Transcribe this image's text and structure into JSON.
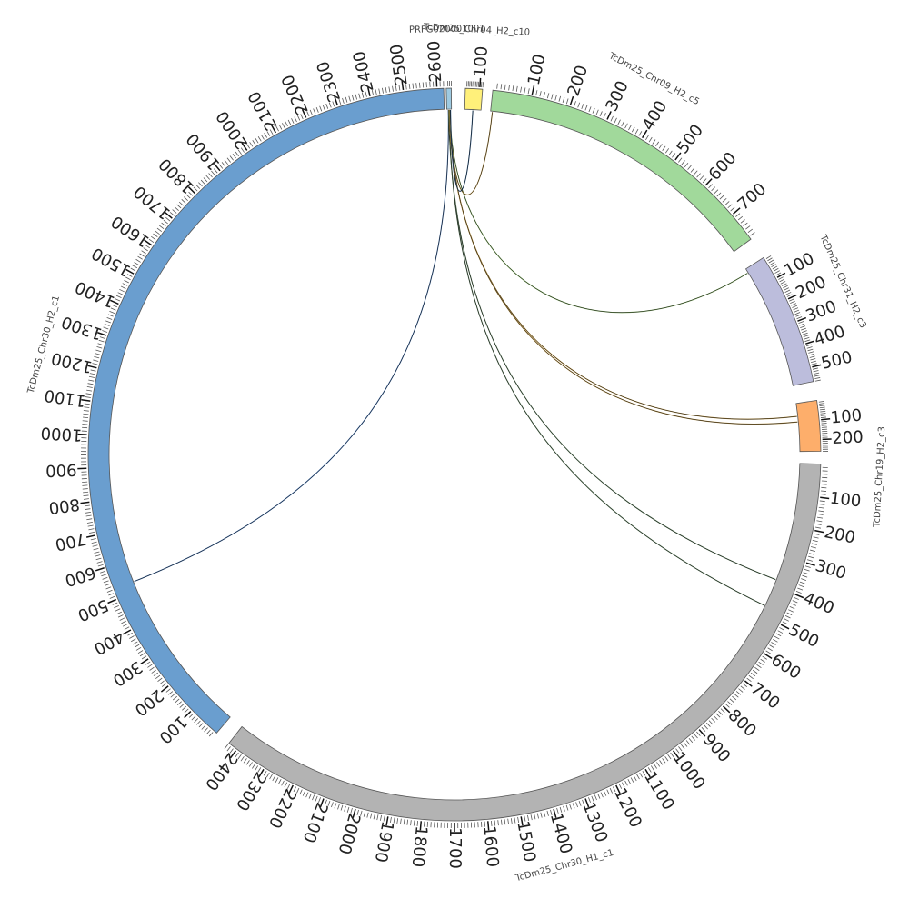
{
  "chart_data": {
    "type": "chord",
    "title": "",
    "tick_major_step": 100,
    "tick_minor_step": 10,
    "segments": [
      {
        "name": "TcDm25_Chr09_H2_c5",
        "length": 778,
        "color": "#a1d99b",
        "start_deg": 6.0,
        "end_deg": 54.0,
        "label_deg": 28
      },
      {
        "name": "TcDm25_Chr31_H2_c3",
        "length": 560,
        "color": "#bcbddc",
        "start_deg": 57.5,
        "end_deg": 78.5,
        "label_deg": 66
      },
      {
        "name": "TcDm25_Chr19_H2_c3",
        "length": 260,
        "color": "#fdae6b",
        "start_deg": 81.5,
        "end_deg": 89.5,
        "label_deg": 93
      },
      {
        "name": "TcDm25_Chr30_H1_c1",
        "length": 2430,
        "color": "#b3b3b3",
        "start_deg": 91.5,
        "end_deg": 218.0,
        "label_deg": 165
      },
      {
        "name": "TcDm25_Chr30_H2_c1",
        "length": 2620,
        "color": "#6a9ecf",
        "start_deg": 220.5,
        "end_deg": 358.3,
        "label_deg": 285
      },
      {
        "name": "PRFG020001001",
        "length": 30,
        "color": "#9ecae1",
        "start_deg": 358.7,
        "end_deg": 359.5,
        "label_deg": 359
      },
      {
        "name": "TcDm25_Chr04_H2_c10",
        "length": 120,
        "color": "#fff07a",
        "start_deg": 1.7,
        "end_deg": 4.4,
        "label_deg": 3
      }
    ],
    "links": [
      {
        "from": "PRFG020001001",
        "from_pos": 10,
        "to": "TcDm25_Chr30_H2_c1",
        "to_pos": 530,
        "color": "#3b6aa8"
      },
      {
        "from": "PRFG020001001",
        "from_pos": 12,
        "to": "TcDm25_Chr30_H1_c1",
        "to_pos": 380,
        "color": "#5a7a5a"
      },
      {
        "from": "PRFG020001001",
        "from_pos": 14,
        "to": "TcDm25_Chr30_H1_c1",
        "to_pos": 470,
        "color": "#5a7a5a"
      },
      {
        "from": "PRFG020001001",
        "from_pos": 16,
        "to": "TcDm25_Chr19_H2_c3",
        "to_pos": 70,
        "color": "#b08a3a"
      },
      {
        "from": "PRFG020001001",
        "from_pos": 18,
        "to": "TcDm25_Chr19_H2_c3",
        "to_pos": 100,
        "color": "#b08a3a"
      },
      {
        "from": "PRFG020001001",
        "from_pos": 20,
        "to": "TcDm25_Chr31_H2_c3",
        "to_pos": 20,
        "color": "#7aa85a"
      },
      {
        "from": "PRFG020001001",
        "from_pos": 22,
        "to": "TcDm25_Chr09_H2_c5",
        "to_pos": 5,
        "color": "#b08a3a"
      },
      {
        "from": "TcDm25_Chr04_H2_c10",
        "from_pos": 60,
        "to": "PRFG020001001",
        "to_pos": 24,
        "color": "#2b5a8a"
      }
    ]
  }
}
